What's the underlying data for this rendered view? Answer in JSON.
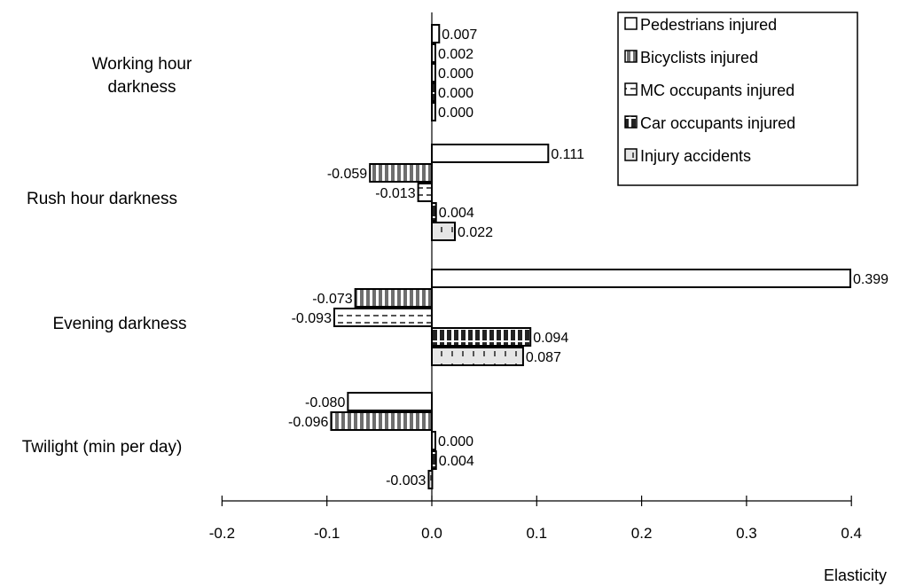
{
  "chart_data": {
    "type": "bar",
    "orientation": "horizontal",
    "xlabel": "Elasticity",
    "xlim": [
      -0.2,
      0.4
    ],
    "xticks": [
      -0.2,
      -0.1,
      0.0,
      0.1,
      0.2,
      0.3,
      0.4
    ],
    "xtick_labels": [
      "-0.2",
      "-0.1",
      "0.0",
      "0.1",
      "0.2",
      "0.3",
      "0.4"
    ],
    "grid": false,
    "legend_position": "top-right",
    "categories": [
      "Working hour darkness",
      "Rush hour darkness",
      "Evening darkness",
      "Twilight (min per day)"
    ],
    "series": [
      {
        "name": "Pedestrians injured",
        "values": [
          0.007,
          0.111,
          0.399,
          -0.08
        ],
        "labels": [
          "0.007",
          "0.111",
          "0.399",
          "-0.080"
        ],
        "fill": "#ffffff",
        "pattern": "none"
      },
      {
        "name": "Bicyclists injured",
        "values": [
          0.002,
          -0.059,
          -0.073,
          -0.096
        ],
        "labels": [
          "0.002",
          "-0.059",
          "-0.073",
          "-0.096"
        ],
        "fill": "#808080",
        "pattern": "vertical-stripes"
      },
      {
        "name": "MC occupants injured",
        "values": [
          0.0,
          -0.013,
          -0.093,
          0.0
        ],
        "labels": [
          "0.000",
          "-0.013",
          "-0.093",
          "0.000"
        ],
        "fill": "#ffffff",
        "pattern": "dashes"
      },
      {
        "name": "Car occupants injured",
        "values": [
          0.0,
          0.004,
          0.094,
          0.004
        ],
        "labels": [
          "0.000",
          "0.004",
          "0.094",
          "0.004"
        ],
        "fill": "#333333",
        "pattern": "dense-stripes"
      },
      {
        "name": "Injury accidents",
        "values": [
          0.0,
          0.022,
          0.087,
          -0.003
        ],
        "labels": [
          "0.000",
          "0.022",
          "0.087",
          "-0.003"
        ],
        "fill": "#d9d9d9",
        "pattern": "light-stripes"
      }
    ]
  }
}
